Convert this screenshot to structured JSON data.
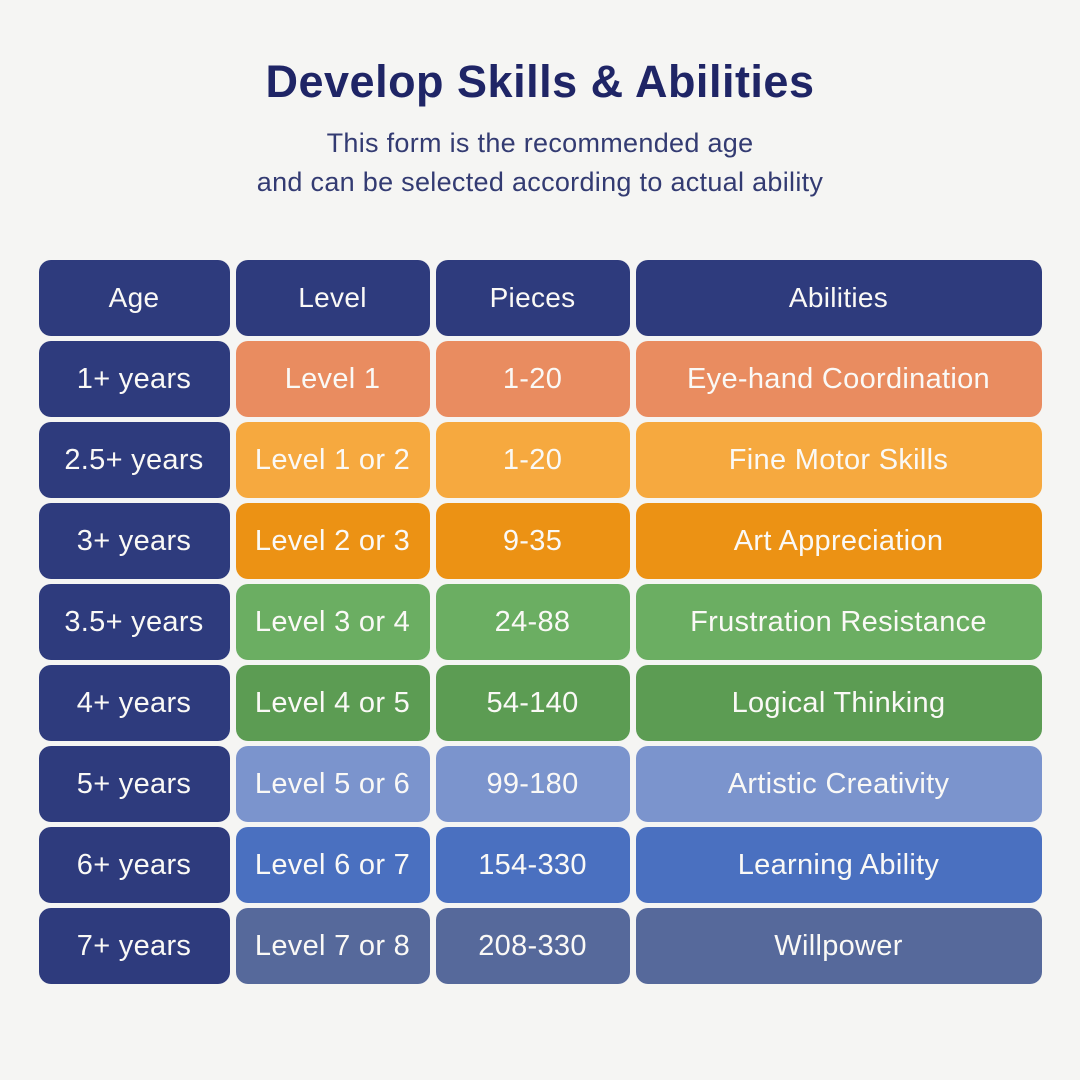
{
  "header": {
    "title": "Develop Skills & Abilities",
    "subtitle_line1": "This form is the recommended age",
    "subtitle_line2": "and can be  selected according to actual ability"
  },
  "colors": {
    "background": "#f5f5f3",
    "title_text": "#1f2566",
    "subtitle_text": "#333b72",
    "header_cell_bg": "#2e3b7d",
    "age_cell_bg": "#2e3b7d",
    "cell_text": "#faf9f6"
  },
  "table": {
    "headers": [
      "Age",
      "Level",
      "Pieces",
      "Abilities"
    ],
    "rows": [
      {
        "age": "1+ years",
        "level": "Level 1",
        "pieces": "1-20",
        "ability": "Eye-hand Coordination",
        "row_color": "#e98c60"
      },
      {
        "age": "2.5+ years",
        "level": "Level 1 or 2",
        "pieces": "1-20",
        "ability": "Fine Motor Skills",
        "row_color": "#f6a93f"
      },
      {
        "age": "3+ years",
        "level": "Level 2 or 3",
        "pieces": "9-35",
        "ability": "Art Appreciation",
        "row_color": "#ec9214"
      },
      {
        "age": "3.5+ years",
        "level": "Level 3 or 4",
        "pieces": "24-88",
        "ability": "Frustration Resistance",
        "row_color": "#6bae62"
      },
      {
        "age": "4+ years",
        "level": "Level 4 or 5",
        "pieces": "54-140",
        "ability": "Logical Thinking",
        "row_color": "#5c9c53"
      },
      {
        "age": "5+ years",
        "level": "Level 5 or 6",
        "pieces": "99-180",
        "ability": "Artistic Creativity",
        "row_color": "#7b94cd"
      },
      {
        "age": "6+ years",
        "level": "Level 6 or 7",
        "pieces": "154-330",
        "ability": "Learning Ability",
        "row_color": "#4a70c0"
      },
      {
        "age": "7+ years",
        "level": "Level 7 or 8",
        "pieces": "208-330",
        "ability": "Willpower",
        "row_color": "#56699b"
      }
    ]
  },
  "chart_data": {
    "type": "table",
    "title": "Develop Skills & Abilities",
    "subtitle": "This form is the recommended age and can be selected according to actual ability",
    "columns": [
      "Age",
      "Level",
      "Pieces",
      "Abilities"
    ],
    "rows": [
      [
        "1+ years",
        "Level 1",
        "1-20",
        "Eye-hand Coordination"
      ],
      [
        "2.5+ years",
        "Level 1 or 2",
        "1-20",
        "Fine Motor Skills"
      ],
      [
        "3+ years",
        "Level 2 or 3",
        "9-35",
        "Art Appreciation"
      ],
      [
        "3.5+ years",
        "Level 3 or 4",
        "24-88",
        "Frustration Resistance"
      ],
      [
        "4+ years",
        "Level 4 or 5",
        "54-140",
        "Logical Thinking"
      ],
      [
        "5+ years",
        "Level 5 or 6",
        "99-180",
        "Artistic Creativity"
      ],
      [
        "6+ years",
        "Level 6 or 7",
        "154-330",
        "Learning Ability"
      ],
      [
        "7+ years",
        "Level 7 or 8",
        "208-330",
        "Willpower"
      ]
    ],
    "row_colors": [
      "#e98c60",
      "#f6a93f",
      "#ec9214",
      "#6bae62",
      "#5c9c53",
      "#7b94cd",
      "#4a70c0",
      "#56699b"
    ],
    "layout": "header row and Age column in navy; Level/Pieces/Abilities cells share the row accent color"
  }
}
